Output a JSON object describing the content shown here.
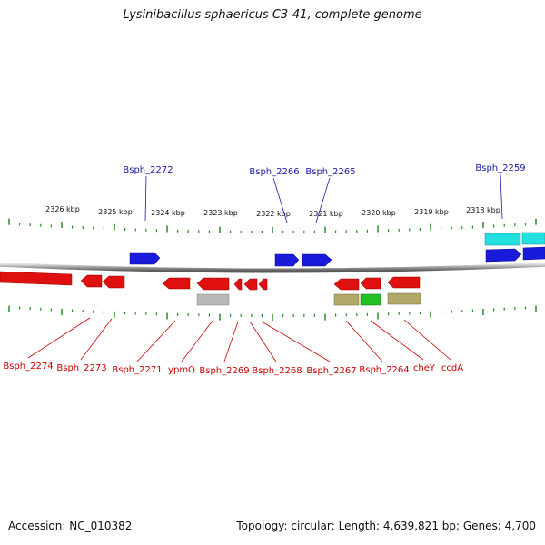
{
  "title": "Lysinibacillus sphaericus C3-41, complete genome",
  "footer": {
    "accession": "Accession: NC_010382",
    "topology": "Topology: circular; Length: 4,639,821 bp; Genes: 4,700"
  },
  "scale_labels": [
    "2326 kbp",
    "2325 kbp",
    "2324 kbp",
    "2323 kbp",
    "2322 kbp",
    "2321 kbp",
    "2320 kbp",
    "2319 kbp",
    "2318 kbp"
  ],
  "top_gene_labels": [
    "Bsph_2272",
    "Bsph_2266",
    "Bsph_2265",
    "Bsph_2259"
  ],
  "bottom_gene_labels": [
    "Bsph_2274",
    "Bsph_2273",
    "Bsph_2271",
    "ypmQ",
    "Bsph_2269",
    "Bsph_2268",
    "Bsph_2267",
    "Bsph_2264",
    "cheY",
    "ccdA"
  ],
  "colors": {
    "forward": "#1a1adb",
    "reverse": "#e01010",
    "cyan": "#22e0e0",
    "olive": "#b0a868",
    "green": "#22c022",
    "gray": "#b8b8b8",
    "tick": "#2a8a2a",
    "label_top": "#1a1aaa",
    "label_bottom": "#cc0000"
  }
}
